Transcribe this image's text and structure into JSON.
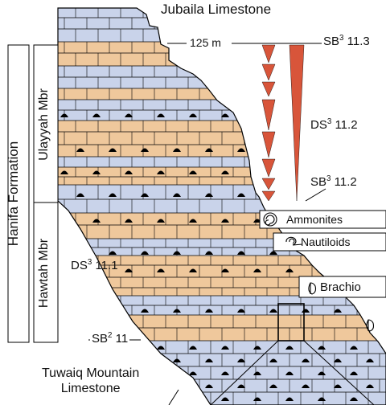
{
  "formation": {
    "name": "Hanifa Formation",
    "upper_member": "Ulayyah Mbr",
    "lower_member": "Hawtah Mbr"
  },
  "units": {
    "top": "Jubaila Limestone",
    "bottom_line1": "Tuwaiq Mountain",
    "bottom_line2": "Limestone"
  },
  "sequence": {
    "thickness": "125 m",
    "sb3_upper_prefix": "SB",
    "sb3_upper_sup": "3",
    "sb3_upper_val": "11.3",
    "ds3_upper_prefix": "DS",
    "ds3_upper_sup": "3",
    "ds3_upper_val": "11.2",
    "sb3_mid_prefix": "SB",
    "sb3_mid_sup": "3",
    "sb3_mid_val": "11.2",
    "ds3_lower_prefix": "DS",
    "ds3_lower_sup": "3",
    "ds3_lower_val": "11.1",
    "sb2_prefix": "SB",
    "sb2_sup": "2",
    "sb2_val": "11"
  },
  "fossils": {
    "ammonites": "Ammonites",
    "nautiloids": "Nautiloids",
    "brachiopods": "Brachio"
  },
  "colors": {
    "limestone": "#c9d3ea",
    "marl": "#efc89c",
    "triangle": "#d8553a",
    "line": "#000000"
  }
}
